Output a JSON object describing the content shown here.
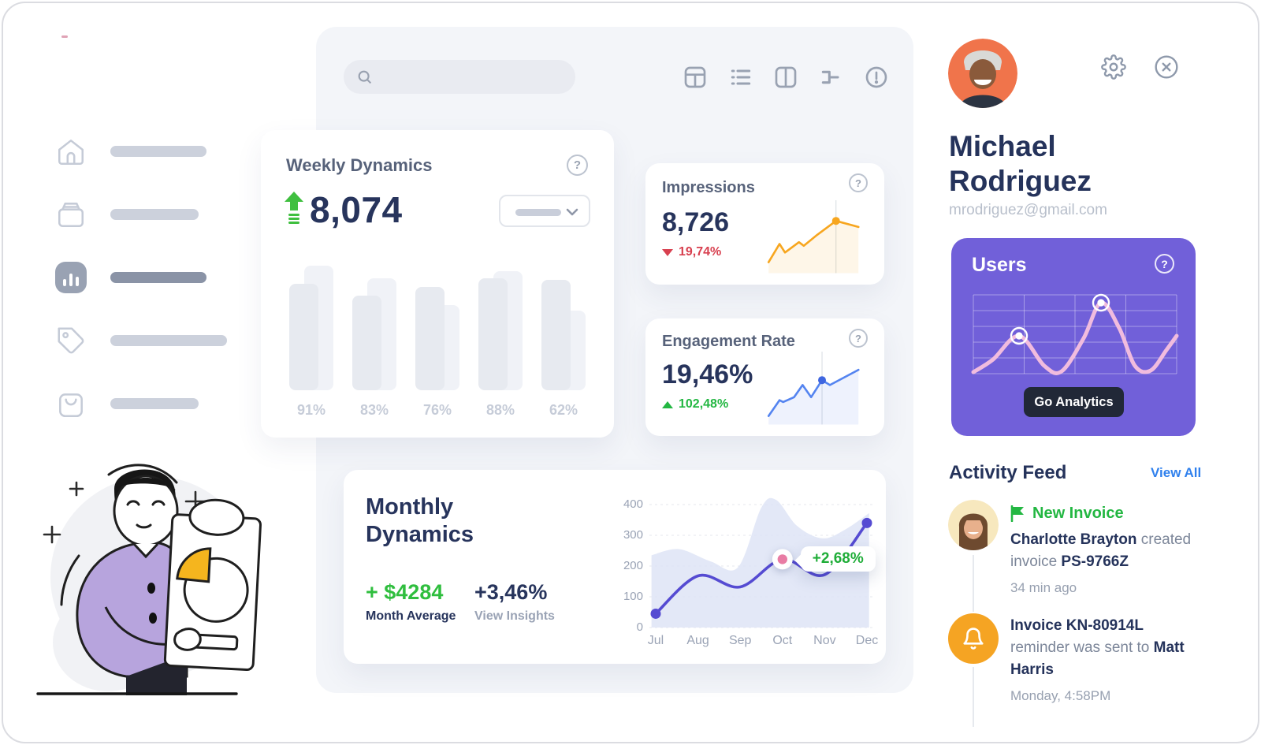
{
  "window": {
    "frame_border": "#dbdce1",
    "panel_bg": "#f3f5f9",
    "accent_dash_color": "#e0a3b6"
  },
  "sidebar": {
    "items": [
      {
        "icon": "home-icon",
        "active": false,
        "pill_width": 122
      },
      {
        "icon": "archive-icon",
        "active": false,
        "pill_width": 112
      },
      {
        "icon": "bar-chart-icon",
        "active": true,
        "pill_width": 122
      },
      {
        "icon": "tag-icon",
        "active": false,
        "pill_width": 148
      },
      {
        "icon": "shopping-bag-icon",
        "active": false,
        "pill_width": 112
      }
    ]
  },
  "topbar": {
    "search": {
      "placeholder": "",
      "icon": "search-icon"
    },
    "view_icons": [
      "table-layout-icon",
      "list-view-icon",
      "columns-view-icon",
      "merge-icon",
      "alerts-icon"
    ]
  },
  "weekly": {
    "title": "Weekly Dynamics",
    "value": "8,074",
    "trend": "up",
    "arrow_color": "#3fbf3f",
    "chart": {
      "type": "bar",
      "labels": [
        "91%",
        "83%",
        "76%",
        "88%",
        "62%"
      ],
      "primary_heights": [
        135,
        120,
        131,
        142,
        140
      ],
      "secondary_heights": [
        158,
        142,
        108,
        151,
        101
      ]
    }
  },
  "impressions": {
    "title": "Impressions",
    "value": "8,726",
    "delta": "19,74%",
    "delta_dir": "down",
    "delta_color": "#d8404f",
    "chart": {
      "type": "line",
      "color": "#f7a61f",
      "dot_color": "#f7a61f",
      "points": [
        [
          0,
          74
        ],
        [
          18,
          44
        ],
        [
          27,
          58
        ],
        [
          50,
          41
        ],
        [
          58,
          47
        ],
        [
          80,
          29
        ],
        [
          111,
          6
        ],
        [
          148,
          16
        ]
      ],
      "marker_index": 6
    }
  },
  "engagement": {
    "title": "Engagement Rate",
    "value": "19,46%",
    "delta": "102,48%",
    "delta_dir": "up",
    "delta_color": "#23b742",
    "chart": {
      "type": "line",
      "color": "#5484f0",
      "dot_color": "#3f66e0",
      "points": [
        [
          0,
          78
        ],
        [
          18,
          52
        ],
        [
          24,
          55
        ],
        [
          42,
          47
        ],
        [
          56,
          27
        ],
        [
          70,
          47
        ],
        [
          88,
          19
        ],
        [
          101,
          27
        ],
        [
          148,
          2
        ]
      ],
      "marker_index": 6
    }
  },
  "monthly": {
    "title_line1": "Monthly",
    "title_line2": "Dynamics",
    "stat1_value": "+ $4284",
    "stat1_label": "Month Average",
    "stat2_value": "+3,46%",
    "stat2_label": "View Insights",
    "tooltip": "+2,68%",
    "chart": {
      "type": "line",
      "x_labels": [
        "Jul",
        "Aug",
        "Sep",
        "Oct",
        "Nov",
        "Dec"
      ],
      "y_ticks": [
        400,
        300,
        200,
        100,
        0
      ],
      "values": [
        45,
        168,
        132,
        222,
        172,
        340
      ],
      "marker_index": 3,
      "end_dot_indexes": [
        0,
        5
      ],
      "line_color": "#554bd2",
      "area_color": "#dee4f6",
      "marker_dot_color": "#e87ca4",
      "bg_curve": [
        [
          -0.1,
          235
        ],
        [
          0.55,
          255
        ],
        [
          1.3,
          215
        ],
        [
          1.95,
          196
        ],
        [
          2.5,
          390
        ],
        [
          2.85,
          415
        ],
        [
          3.35,
          330
        ],
        [
          3.95,
          290
        ],
        [
          4.5,
          320
        ],
        [
          5.05,
          372
        ]
      ]
    }
  },
  "profile": {
    "name_line1": "Michael",
    "name_line2": "Rodriguez",
    "email": "mrodriguez@gmail.com"
  },
  "users": {
    "title": "Users",
    "button_label": "Go Analytics",
    "card_color": "#7160d9",
    "button_color": "#212837",
    "chart": {
      "type": "line",
      "color": "#f1bcde",
      "points": [
        [
          0,
          98
        ],
        [
          25,
          82
        ],
        [
          58,
          52
        ],
        [
          90,
          90
        ],
        [
          112,
          97
        ],
        [
          140,
          55
        ],
        [
          162,
          10
        ],
        [
          185,
          42
        ],
        [
          205,
          90
        ],
        [
          225,
          96
        ],
        [
          245,
          70
        ],
        [
          258,
          52
        ]
      ],
      "marker_indexes": [
        2,
        6
      ]
    }
  },
  "activity": {
    "title": "Activity Feed",
    "view_all": "View All",
    "items": [
      {
        "badge_text": "New Invoice",
        "badge_color": "#23b742",
        "segments": [
          {
            "t": "Charlotte Brayton",
            "b": true
          },
          {
            "t": " created invoice ",
            "b": false
          },
          {
            "t": "PS-9766Z",
            "b": true
          }
        ],
        "time": "34  min ago"
      },
      {
        "segments": [
          {
            "t": "Invoice KN-80914L",
            "b": true
          },
          {
            "t": " reminder was sent to ",
            "b": false
          },
          {
            "t": "Matt Harris",
            "b": true
          }
        ],
        "time": "Monday, 4:58PM"
      }
    ]
  }
}
